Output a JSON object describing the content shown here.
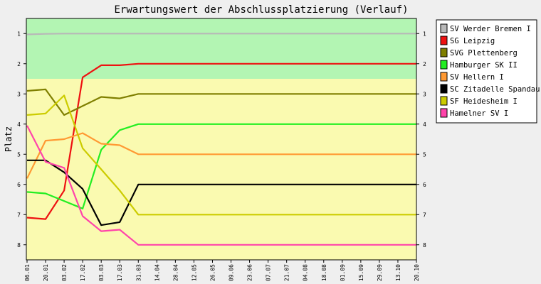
{
  "chart_data": {
    "type": "line",
    "title": "Erwartungswert der Abschlussplatzierung (Verlauf)",
    "ylabel": "Platz",
    "xlabel": "",
    "ylim": [
      0.5,
      8.5
    ],
    "y_reversed": true,
    "y_ticks": [
      "1",
      "2",
      "3",
      "4",
      "5",
      "6",
      "7",
      "8"
    ],
    "bands": [
      {
        "from": 0.5,
        "to": 2.5,
        "color": "#b3f5b3"
      },
      {
        "from": 2.5,
        "to": 8.5,
        "color": "#fafab0"
      }
    ],
    "grid": false,
    "legend_position": "right",
    "x": [
      "06.01",
      "20.01",
      "03.02",
      "17.02",
      "03.03",
      "17.03",
      "31.03",
      "14.04",
      "28.04",
      "12.05",
      "26.05",
      "09.06",
      "23.06",
      "07.07",
      "21.07",
      "04.08",
      "18.08",
      "01.09",
      "15.09",
      "29.09",
      "13.10",
      "20.10"
    ],
    "series": [
      {
        "name": "SV Werder Bremen I",
        "color": "#b8b8b8",
        "values": [
          1.03,
          1.01,
          1.0,
          1.0,
          1.0,
          1.0,
          1.0,
          1.0,
          1.0,
          1.0,
          1.0,
          1.0,
          1.0,
          1.0,
          1.0,
          1.0,
          1.0,
          1.0,
          1.0,
          1.0,
          1.0,
          1.0
        ]
      },
      {
        "name": "SG Leipzig",
        "color": "#ee1111",
        "values": [
          7.1,
          7.15,
          6.2,
          2.45,
          2.05,
          2.05,
          2.0,
          2.0,
          2.0,
          2.0,
          2.0,
          2.0,
          2.0,
          2.0,
          2.0,
          2.0,
          2.0,
          2.0,
          2.0,
          2.0,
          2.0,
          2.0
        ]
      },
      {
        "name": "SVG Plettenberg",
        "color": "#7f7f00",
        "values": [
          2.9,
          2.85,
          3.7,
          3.4,
          3.1,
          3.15,
          3.0,
          3.0,
          3.0,
          3.0,
          3.0,
          3.0,
          3.0,
          3.0,
          3.0,
          3.0,
          3.0,
          3.0,
          3.0,
          3.0,
          3.0,
          3.0
        ]
      },
      {
        "name": "Hamburger SK II",
        "color": "#22ee22",
        "values": [
          6.25,
          6.3,
          6.55,
          6.8,
          4.85,
          4.2,
          4.0,
          4.0,
          4.0,
          4.0,
          4.0,
          4.0,
          4.0,
          4.0,
          4.0,
          4.0,
          4.0,
          4.0,
          4.0,
          4.0,
          4.0,
          4.0
        ]
      },
      {
        "name": "SV Hellern I",
        "color": "#ff9933",
        "values": [
          5.8,
          4.55,
          4.5,
          4.3,
          4.65,
          4.7,
          5.0,
          5.0,
          5.0,
          5.0,
          5.0,
          5.0,
          5.0,
          5.0,
          5.0,
          5.0,
          5.0,
          5.0,
          5.0,
          5.0,
          5.0,
          5.0
        ]
      },
      {
        "name": "SC Zitadelle Spandau",
        "color": "#000000",
        "values": [
          5.2,
          5.2,
          5.6,
          6.15,
          7.35,
          7.25,
          6.0,
          6.0,
          6.0,
          6.0,
          6.0,
          6.0,
          6.0,
          6.0,
          6.0,
          6.0,
          6.0,
          6.0,
          6.0,
          6.0,
          6.0,
          6.0
        ]
      },
      {
        "name": "SF Heidesheim I",
        "color": "#cccc00",
        "values": [
          3.7,
          3.65,
          3.05,
          4.8,
          5.5,
          6.2,
          7.0,
          7.0,
          7.0,
          7.0,
          7.0,
          7.0,
          7.0,
          7.0,
          7.0,
          7.0,
          7.0,
          7.0,
          7.0,
          7.0,
          7.0,
          7.0
        ]
      },
      {
        "name": "Hamelner SV I",
        "color": "#ff44aa",
        "values": [
          4.05,
          5.25,
          5.45,
          7.05,
          7.55,
          7.5,
          8.0,
          8.0,
          8.0,
          8.0,
          8.0,
          8.0,
          8.0,
          8.0,
          8.0,
          8.0,
          8.0,
          8.0,
          8.0,
          8.0,
          8.0,
          8.0
        ]
      }
    ]
  }
}
